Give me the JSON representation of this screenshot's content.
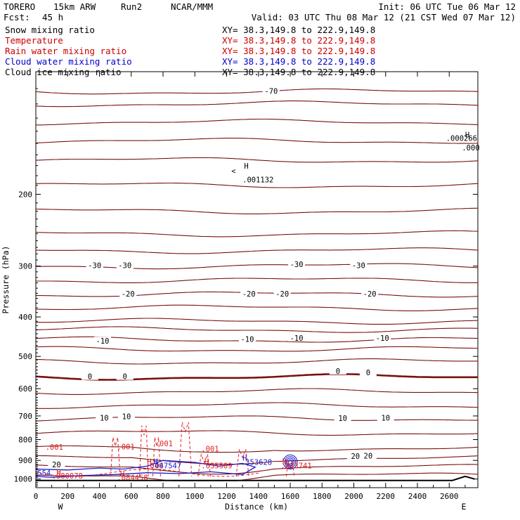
{
  "header": {
    "model": "TORERO",
    "resolution": "15km ARW",
    "run": "Run2",
    "org": "NCAR/MMM",
    "init": "Init: 06 UTC Tue 06 Mar 12",
    "fcst_label": "Fcst:",
    "fcst_value": "45 h",
    "valid": "Valid: 03 UTC Thu 08 Mar 12 (21 CST Wed 07 Mar 12)"
  },
  "legend": [
    {
      "name": "Snow mixing ratio",
      "color": "#000000",
      "xy": "XY=  38.3,149.8 to 222.9,149.8"
    },
    {
      "name": "Temperature",
      "color": "#cc0000",
      "xy": "XY=  38.3,149.8 to 222.9,149.8"
    },
    {
      "name": "Rain water mixing ratio",
      "color": "#cc0000",
      "xy": "XY=  38.3,149.8 to 222.9,149.8"
    },
    {
      "name": "Cloud water mixing ratio",
      "color": "#0000cc",
      "xy": "XY=  38.3,149.8 to 222.9,149.8"
    },
    {
      "name": "Cloud ice mixing ratio",
      "color": "#000000",
      "xy": "XY=  38.3,149.8 to 222.9,149.8"
    }
  ],
  "colors": {
    "temperature": "#7a1010",
    "rain": "#e02020",
    "cloud_water": "#1a1acc",
    "snow": "#000000",
    "terrain": "#000000"
  },
  "chart_data": {
    "type": "contour",
    "xlabel": "Distance (km)",
    "ylabel": "Pressure (hPa)",
    "x_ticks": [
      0,
      200,
      400,
      600,
      800,
      1000,
      1200,
      1400,
      1600,
      1800,
      2000,
      2200,
      2400,
      2600
    ],
    "y_ticks": [
      200,
      300,
      400,
      500,
      600,
      700,
      800,
      900,
      1000
    ],
    "xlim": [
      0,
      2780
    ],
    "ylim": [
      1050,
      100
    ],
    "y_scale": "log",
    "x_end_labels": {
      "left": "W",
      "right": "E"
    },
    "temperature_contour_labels": [
      {
        "text": "-70",
        "x": 1480,
        "p": 112
      },
      {
        "text": "-30",
        "x": 370,
        "p": 300
      },
      {
        "text": "-30",
        "x": 560,
        "p": 300
      },
      {
        "text": "-30",
        "x": 1640,
        "p": 298
      },
      {
        "text": "-30",
        "x": 2030,
        "p": 300
      },
      {
        "text": "-20",
        "x": 580,
        "p": 352
      },
      {
        "text": "-20",
        "x": 1340,
        "p": 352
      },
      {
        "text": "-20",
        "x": 1550,
        "p": 352
      },
      {
        "text": "-20",
        "x": 2100,
        "p": 352
      },
      {
        "text": "-10",
        "x": 420,
        "p": 460
      },
      {
        "text": "-10",
        "x": 1330,
        "p": 455
      },
      {
        "text": "-10",
        "x": 1640,
        "p": 452
      },
      {
        "text": "-10",
        "x": 2180,
        "p": 452
      },
      {
        "text": "0",
        "x": 340,
        "p": 562
      },
      {
        "text": "0",
        "x": 560,
        "p": 562
      },
      {
        "text": "0",
        "x": 1900,
        "p": 545
      },
      {
        "text": "0",
        "x": 2090,
        "p": 550
      },
      {
        "text": "10",
        "x": 430,
        "p": 710
      },
      {
        "text": "10",
        "x": 570,
        "p": 705
      },
      {
        "text": "10",
        "x": 1930,
        "p": 712
      },
      {
        "text": "10",
        "x": 2200,
        "p": 710
      },
      {
        "text": "20",
        "x": 130,
        "p": 925
      },
      {
        "text": "20",
        "x": 2010,
        "p": 882
      },
      {
        "text": "20",
        "x": 2090,
        "p": 880
      }
    ],
    "annotations": [
      {
        "text": "H",
        "x": 1310,
        "p": 173,
        "series": "snow"
      },
      {
        "text": ".001132",
        "x": 1300,
        "p": 187,
        "series": "snow"
      },
      {
        "text": "<",
        "x": 1230,
        "p": 178,
        "series": "snow"
      },
      {
        "text": ".000266",
        "x": 2580,
        "p": 148,
        "series": "snow"
      },
      {
        "text": "H",
        "x": 2700,
        "p": 145,
        "series": "snow"
      },
      {
        "text": ".000",
        "x": 2680,
        "p": 156,
        "series": "snow"
      },
      {
        "text": ".001",
        "x": 60,
        "p": 848,
        "series": "rain"
      },
      {
        "text": ".001",
        "x": 510,
        "p": 845,
        "series": "rain"
      },
      {
        "text": ".001",
        "x": 750,
        "p": 830,
        "series": "rain"
      },
      {
        "text": ".001",
        "x": 1040,
        "p": 855,
        "series": "rain"
      },
      {
        "text": "H",
        "x": 700,
        "p": 920,
        "series": "rain"
      },
      {
        "text": ".040",
        "x": 690,
        "p": 942,
        "series": "rain"
      },
      {
        "text": "H",
        "x": 1060,
        "p": 920,
        "series": "rain"
      },
      {
        "text": ".035509",
        "x": 1040,
        "p": 942,
        "series": "rain"
      },
      {
        "text": "H",
        "x": 1550,
        "p": 920,
        "series": "rain"
      },
      {
        "text": ".013741",
        "x": 1540,
        "p": 942,
        "series": "rain"
      },
      {
        "text": "H",
        "x": 130,
        "p": 975,
        "series": "rain"
      },
      {
        "text": ".080078",
        "x": 100,
        "p": 997,
        "series": "rain"
      },
      {
        "text": "H",
        "x": 530,
        "p": 985,
        "series": "rain"
      },
      {
        "text": ".084458",
        "x": 510,
        "p": 1008,
        "series": "rain"
      },
      {
        "text": "H",
        "x": 740,
        "p": 920,
        "series": "cloud_water"
      },
      {
        "text": ".047547",
        "x": 720,
        "p": 942,
        "series": "cloud_water"
      },
      {
        "text": "H",
        "x": 1300,
        "p": 902,
        "series": "cloud_water"
      },
      {
        "text": ".353628",
        "x": 1290,
        "p": 922,
        "series": "cloud_water"
      },
      {
        "text": "554",
        "x": 10,
        "p": 982,
        "series": "cloud_water"
      }
    ]
  }
}
